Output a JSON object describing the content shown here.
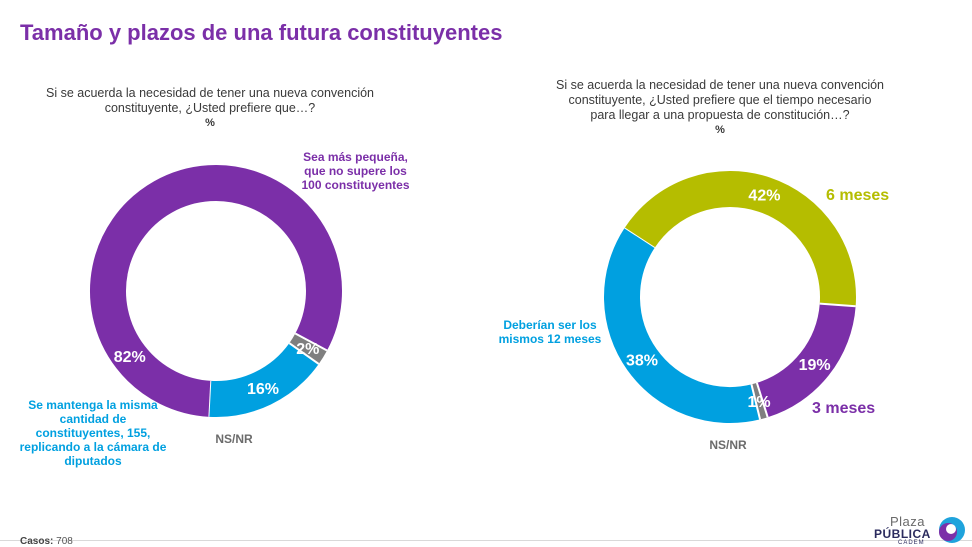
{
  "title": "Tamaño y plazos de una futura constituyentes",
  "footer": {
    "casos_label": "Casos:",
    "casos_value": "708"
  },
  "logo": {
    "line1": "Plaza",
    "line2": "PÚBLICA",
    "line3": "CADEM"
  },
  "charts": [
    {
      "question": "Si se acuerda la necesidad de tener una nueva convención constituyente, ¿Usted prefiere que…?",
      "unit": "%",
      "slice_labels": [
        "Sea más pequeña, que no supere los 100 constituyentes",
        "Se mantenga la misma cantidad de constituyentes, 155, replicando a la cámara de diputados",
        "NS/NR"
      ]
    },
    {
      "question": "Si se acuerda la necesidad de tener una nueva convención constituyente, ¿Usted prefiere que el tiempo necesario para llegar a una propuesta de constitución…?",
      "unit": "%",
      "slice_labels": [
        "6 meses",
        "3 meses",
        "NS/NR",
        "Deberían ser los mismos 12 meses"
      ]
    }
  ],
  "chart_data": [
    {
      "type": "pie",
      "donut": true,
      "categories": [
        "Sea más pequeña, que no supere los 100 constituyentes",
        "NS/NR",
        "Se mantenga la misma cantidad de constituyentes, 155, replicando a la cámara de diputados"
      ],
      "values": [
        82,
        2,
        16
      ],
      "value_labels": [
        "82%",
        "2%",
        "16%"
      ],
      "colors": [
        "#7b2fa8",
        "#7f7f7f",
        "#00a0e0"
      ]
    },
    {
      "type": "pie",
      "donut": true,
      "categories": [
        "6 meses",
        "3 meses",
        "NS/NR",
        "Deberían ser los mismos 12 meses"
      ],
      "values": [
        42,
        19,
        1,
        38
      ],
      "value_labels": [
        "42%",
        "19%",
        "1%",
        "38%"
      ],
      "colors": [
        "#b5bd00",
        "#7b2fa8",
        "#7f7f7f",
        "#00a0e0"
      ]
    }
  ]
}
